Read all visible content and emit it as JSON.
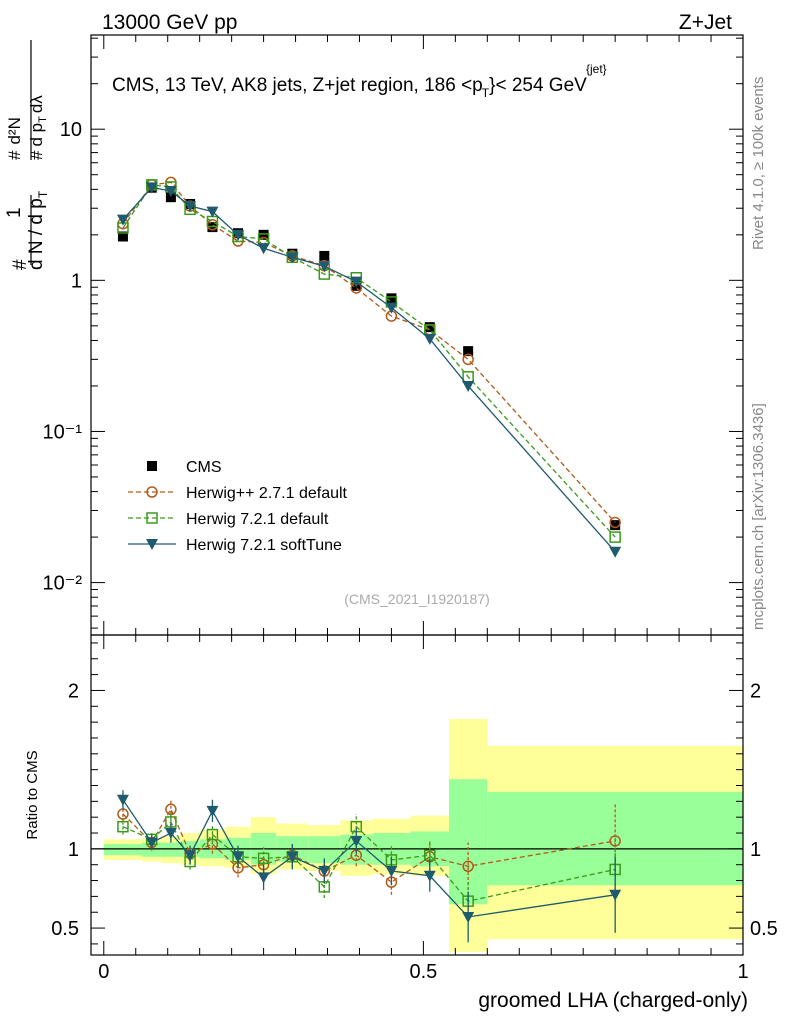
{
  "header": {
    "left": "13000 GeV pp",
    "right": "Z+Jet"
  },
  "side": {
    "rivet": "Rivet 4.1.0, ≥ 100k events",
    "mcplots": "mcplots.cern.ch [arXiv:1306.3436]"
  },
  "main": {
    "title_prefix": "CMS, 13 TeV, AK8 jets, Z+jet region, 186 <",
    "title_p": "p",
    "title_sub": "T",
    "title_sup": "{jet}",
    "title_suffix": "}< 254 GeV",
    "reference": "(CMS_2021_I1920187)",
    "ylabel_hash": "#",
    "ylabel_frac_top": "1",
    "ylabel_frac_bottom": "d N / d p",
    "ylabel_sub": "T",
    "ylabel_right": "# d²N # d p_T dλ",
    "yticks": [
      {
        "value": 10,
        "label": "10"
      },
      {
        "value": 1,
        "label": "1"
      },
      {
        "value": 0.1,
        "label": "10⁻¹"
      },
      {
        "value": 0.01,
        "label": "10⁻²"
      }
    ]
  },
  "ratio": {
    "ylabel": "Ratio to CMS",
    "yticks": [
      {
        "value": 0.5,
        "label": "0.5"
      },
      {
        "value": 1,
        "label": "1"
      },
      {
        "value": 2,
        "label": "2"
      }
    ]
  },
  "xaxis": {
    "label": "groomed LHA (charged-only)",
    "ticks": [
      {
        "value": 0,
        "label": "0"
      },
      {
        "value": 0.5,
        "label": "0.5"
      },
      {
        "value": 1,
        "label": "1"
      }
    ]
  },
  "colors": {
    "cms": "#000000",
    "herwigpp": "#b3591a",
    "herwig721": "#3a9a1c",
    "softtune": "#1f5a6e",
    "band_yellow": "#ffff99",
    "band_green": "#99ff99"
  },
  "chart_data": {
    "type": "scatter",
    "x": [
      0.03,
      0.075,
      0.105,
      0.135,
      0.17,
      0.21,
      0.25,
      0.295,
      0.345,
      0.395,
      0.45,
      0.51,
      0.57,
      0.8
    ],
    "xlim": [
      -0.02,
      1.0
    ],
    "ylim_main": [
      0.0045,
      42
    ],
    "ylim_ratio": [
      0.33,
      2.35
    ],
    "bins": [
      0.0,
      0.06,
      0.09,
      0.12,
      0.15,
      0.19,
      0.23,
      0.27,
      0.32,
      0.37,
      0.42,
      0.48,
      0.54,
      0.6,
      1.0
    ],
    "bands": {
      "yellow_lo": [
        0.93,
        0.92,
        0.91,
        0.9,
        0.89,
        0.88,
        0.84,
        0.87,
        0.86,
        0.83,
        0.84,
        0.83,
        0.35,
        0.43
      ],
      "yellow_hi": [
        1.06,
        1.07,
        1.08,
        1.1,
        1.12,
        1.14,
        1.2,
        1.16,
        1.15,
        1.18,
        1.19,
        1.21,
        1.82,
        1.65
      ],
      "green_lo": [
        0.96,
        0.95,
        0.95,
        0.95,
        0.94,
        0.93,
        0.9,
        0.92,
        0.91,
        0.9,
        0.9,
        0.89,
        0.65,
        0.77
      ],
      "green_hi": [
        1.03,
        1.04,
        1.04,
        1.05,
        1.06,
        1.07,
        1.1,
        1.08,
        1.08,
        1.09,
        1.1,
        1.11,
        1.44,
        1.36
      ]
    },
    "series": [
      {
        "name": "CMS",
        "style": "square-filled",
        "values": [
          1.95,
          4.1,
          3.55,
          3.2,
          2.25,
          2.05,
          2.0,
          1.5,
          1.45,
          0.92,
          0.76,
          0.49,
          0.34,
          0.024
        ]
      },
      {
        "name": "Herwig++ 2.7.1 default",
        "style": "circle-open-dashed",
        "values": [
          2.37,
          4.28,
          4.45,
          3.1,
          2.33,
          1.82,
          1.78,
          1.45,
          1.25,
          0.89,
          0.58,
          0.47,
          0.3,
          0.025
        ],
        "ratio": [
          1.22,
          1.04,
          1.25,
          0.97,
          1.03,
          0.88,
          0.9,
          0.96,
          0.86,
          0.96,
          0.79,
          0.95,
          0.89,
          1.05
        ],
        "ratio_err": [
          0.05,
          0.04,
          0.06,
          0.05,
          0.06,
          0.06,
          0.06,
          0.07,
          0.07,
          0.07,
          0.08,
          0.09,
          0.15,
          0.23
        ]
      },
      {
        "name": "Herwig 7.2.1 default",
        "style": "square-open-dashed",
        "values": [
          2.22,
          4.28,
          4.15,
          2.95,
          2.45,
          1.95,
          1.88,
          1.42,
          1.1,
          1.04,
          0.72,
          0.47,
          0.23,
          0.02
        ],
        "ratio": [
          1.14,
          1.06,
          1.17,
          0.92,
          1.09,
          0.95,
          0.94,
          0.95,
          0.76,
          1.14,
          0.93,
          0.96,
          0.67,
          0.87
        ],
        "ratio_err": [
          0.05,
          0.04,
          0.06,
          0.05,
          0.06,
          0.06,
          0.07,
          0.07,
          0.07,
          0.08,
          0.09,
          0.09,
          0.12,
          0.2
        ]
      },
      {
        "name": "Herwig 7.2.1 softTune",
        "style": "triangle-down-solid",
        "values": [
          2.52,
          4.12,
          3.9,
          3.1,
          2.85,
          2.0,
          1.63,
          1.42,
          1.24,
          0.98,
          0.66,
          0.41,
          0.2,
          0.016
        ],
        "ratio": [
          1.31,
          1.04,
          1.1,
          0.96,
          1.24,
          0.95,
          0.82,
          0.95,
          0.86,
          1.05,
          0.86,
          0.83,
          0.57,
          0.71
        ],
        "ratio_err": [
          0.06,
          0.05,
          0.06,
          0.06,
          0.07,
          0.07,
          0.08,
          0.08,
          0.08,
          0.08,
          0.09,
          0.1,
          0.16,
          0.24
        ]
      }
    ]
  }
}
